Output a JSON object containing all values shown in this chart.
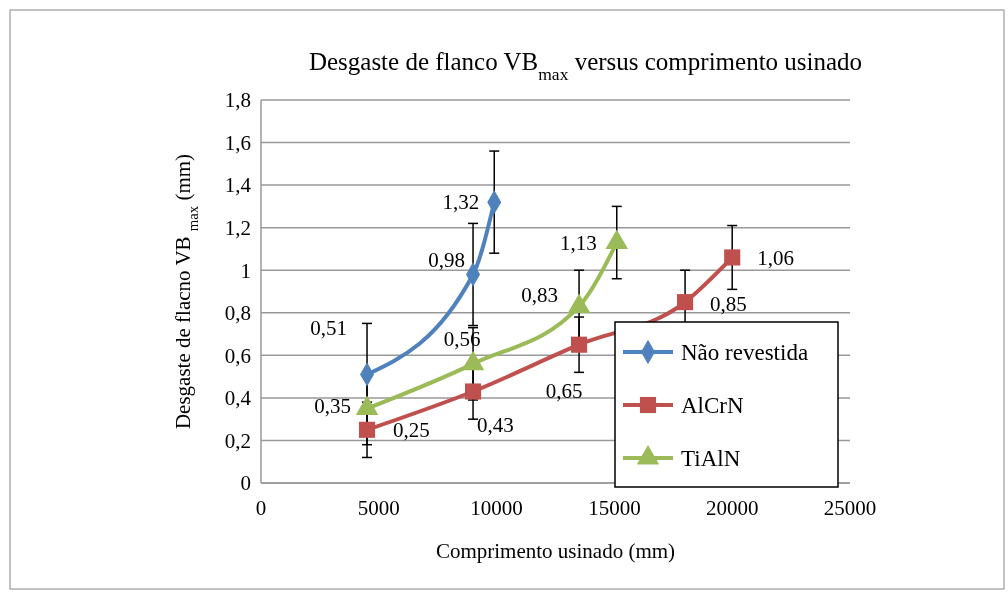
{
  "chart_data": {
    "type": "line",
    "title": "Desgaste  de flanco VB$_{max}$ versus comprimento usinado",
    "xlabel": "Comprimento usinado (mm)",
    "ylabel": "Desgaste de flacno VB $_{max}$ (mm)",
    "xlim": [
      0,
      25000
    ],
    "xticks": [
      0,
      5000,
      10000,
      15000,
      20000,
      25000
    ],
    "ylim": [
      0,
      1.8
    ],
    "yticks": [
      0,
      {
        "value": 0.2,
        "label": "0,2"
      },
      {
        "value": 0.4,
        "label": "0,4"
      },
      {
        "value": 0.6,
        "label": "0,6"
      },
      {
        "value": 0.8,
        "label": "0,8"
      },
      1,
      {
        "value": 1.2,
        "label": "1,2"
      },
      {
        "value": 1.4,
        "label": "1,4"
      },
      {
        "value": 1.6,
        "label": "1,6"
      },
      {
        "value": 1.8,
        "label": "1,8"
      }
    ],
    "grid": "y",
    "legend": "bottom right",
    "series": [
      {
        "name": "Não revestida",
        "color": "#4f81bd",
        "marker": "diamond",
        "x": [
          4500,
          9000,
          9900
        ],
        "values": [
          0.51,
          0.98,
          1.32
        ],
        "errors": [
          0.24,
          0.24,
          0.24
        ],
        "value_labels": [
          "0,51",
          "0,98",
          "1,32"
        ]
      },
      {
        "name": "AlCrN",
        "color": "#c0504d",
        "marker": "square",
        "x": [
          4500,
          9000,
          13500,
          18000,
          20000
        ],
        "values": [
          0.25,
          0.43,
          0.65,
          0.85,
          1.06
        ],
        "errors": [
          0.13,
          0.13,
          0.13,
          0.15,
          0.15
        ],
        "value_labels": [
          "0,25",
          "0,43",
          "0,65",
          "0,85",
          "1,06"
        ]
      },
      {
        "name": "TiAlN",
        "color": "#9bbb59",
        "marker": "triangle",
        "x": [
          4500,
          9000,
          13500,
          15100
        ],
        "values": [
          0.35,
          0.56,
          0.83,
          1.13
        ],
        "errors": [
          0.17,
          0.17,
          0.17,
          0.17
        ],
        "value_labels": [
          "0,35",
          "0,56",
          "0,83",
          "1,13"
        ]
      }
    ]
  }
}
